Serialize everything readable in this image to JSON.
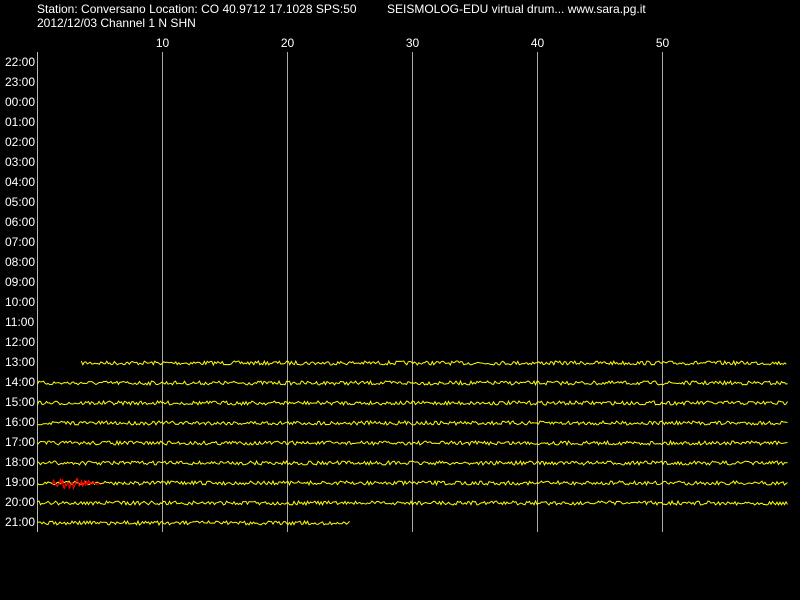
{
  "chart_data": {
    "type": "drum",
    "title": "Station: Conversano Location: CO 40.9712 17.1028 SPS:50",
    "subtitle": "2012/12/03  Channel 1 N SHN",
    "header_right": "SEISMOLOG-EDU virtual drum... www.sara.pg.it",
    "xlim": [
      0,
      60
    ],
    "xticks": [
      10,
      20,
      30,
      40,
      50
    ],
    "categories": [
      "22:00",
      "23:00",
      "00:00",
      "01:00",
      "02:00",
      "03:00",
      "04:00",
      "05:00",
      "06:00",
      "07:00",
      "08:00",
      "09:00",
      "10:00",
      "11:00",
      "12:00",
      "13:00",
      "14:00",
      "15:00",
      "16:00",
      "17:00",
      "18:00",
      "19:00",
      "20:00",
      "21:00"
    ],
    "trace_color": "#ffff00",
    "trace_start": [
      null,
      null,
      null,
      null,
      null,
      null,
      null,
      null,
      null,
      null,
      null,
      null,
      null,
      null,
      null,
      3.5,
      0,
      0,
      0,
      0,
      0,
      0,
      0,
      0
    ],
    "trace_end": [
      null,
      null,
      null,
      null,
      null,
      null,
      null,
      null,
      null,
      null,
      null,
      null,
      null,
      null,
      null,
      60,
      60,
      60,
      60,
      60,
      60,
      60,
      60,
      25
    ],
    "events": [
      {
        "row": 21,
        "start": 1.2,
        "end": 5,
        "color": "#ff0000"
      }
    ]
  }
}
